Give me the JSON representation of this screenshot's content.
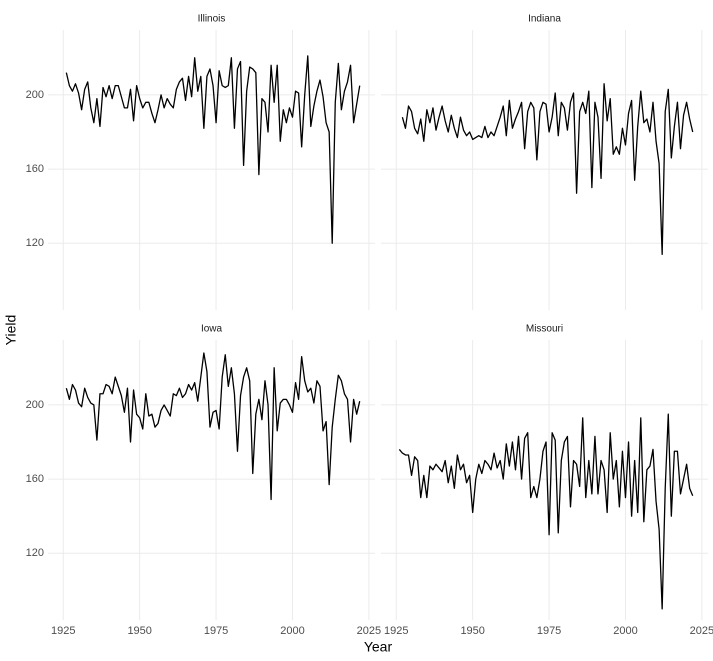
{
  "chart_data": {
    "type": "line",
    "x_label": "Year",
    "y_label": "Yield",
    "xlim": [
      1920,
      2027
    ],
    "xticks": [
      1925,
      1950,
      1975,
      2000,
      2025
    ],
    "ylim": [
      84,
      235
    ],
    "yticks": [
      120,
      160,
      200
    ],
    "grid": true,
    "x": [
      1926,
      1927,
      1928,
      1929,
      1930,
      1931,
      1932,
      1933,
      1934,
      1935,
      1936,
      1937,
      1938,
      1939,
      1940,
      1941,
      1942,
      1943,
      1944,
      1945,
      1946,
      1947,
      1948,
      1949,
      1950,
      1951,
      1952,
      1953,
      1954,
      1955,
      1956,
      1957,
      1958,
      1959,
      1960,
      1961,
      1962,
      1963,
      1964,
      1965,
      1966,
      1967,
      1968,
      1969,
      1970,
      1971,
      1972,
      1973,
      1974,
      1975,
      1976,
      1977,
      1978,
      1979,
      1980,
      1981,
      1982,
      1983,
      1984,
      1985,
      1986,
      1987,
      1988,
      1989,
      1990,
      1991,
      1992,
      1993,
      1994,
      1995,
      1996,
      1997,
      1998,
      1999,
      2000,
      2001,
      2002,
      2003,
      2004,
      2005,
      2006,
      2007,
      2008,
      2009,
      2010,
      2011,
      2012,
      2013,
      2014,
      2015,
      2016,
      2017,
      2018,
      2019,
      2020,
      2021,
      2022
    ],
    "series": [
      {
        "name": "Illinois",
        "color": "#000000",
        "values": [
          212,
          205,
          202,
          206,
          201,
          192,
          203,
          207,
          193,
          185,
          198,
          183,
          204,
          199,
          205,
          198,
          205,
          205,
          199,
          193,
          193,
          203,
          186,
          205,
          198,
          193,
          196,
          196,
          190,
          185,
          192,
          200,
          193,
          198,
          195,
          193,
          203,
          207,
          209,
          197,
          210,
          199,
          220,
          202,
          210,
          182,
          210,
          214,
          205,
          185,
          213,
          205,
          204,
          205,
          220,
          182,
          214,
          218,
          162,
          202,
          215,
          214,
          212,
          157,
          198,
          196,
          180,
          216,
          196,
          216,
          175,
          192,
          185,
          193,
          188,
          202,
          201,
          172,
          200,
          221,
          183,
          194,
          202,
          208,
          199,
          185,
          180,
          120,
          196,
          217,
          192,
          202,
          207,
          216,
          185,
          195,
          205
        ]
      },
      {
        "name": "Indiana",
        "color": "#000000",
        "values": [
          null,
          188,
          182,
          194,
          191,
          182,
          179,
          187,
          175,
          192,
          185,
          193,
          181,
          188,
          194,
          186,
          180,
          189,
          182,
          177,
          188,
          181,
          178,
          180,
          176,
          177,
          178,
          177,
          183,
          177,
          180,
          178,
          183,
          188,
          194,
          178,
          197,
          182,
          187,
          191,
          196,
          171,
          191,
          196,
          193,
          165,
          191,
          196,
          195,
          180,
          188,
          201,
          178,
          196,
          193,
          181,
          196,
          201,
          147,
          191,
          196,
          190,
          202,
          150,
          196,
          188,
          155,
          206,
          186,
          198,
          168,
          172,
          168,
          182,
          173,
          190,
          197,
          154,
          183,
          202,
          185,
          187,
          180,
          196,
          175,
          163,
          114,
          191,
          203,
          166,
          183,
          196,
          171,
          189,
          196,
          187,
          180
        ]
      },
      {
        "name": "Iowa",
        "color": "#000000",
        "values": [
          209,
          203,
          211,
          208,
          201,
          199,
          209,
          204,
          201,
          200,
          181,
          206,
          206,
          211,
          210,
          206,
          215,
          210,
          205,
          196,
          209,
          180,
          208,
          195,
          193,
          187,
          206,
          194,
          195,
          188,
          190,
          197,
          200,
          197,
          194,
          206,
          205,
          209,
          204,
          206,
          211,
          208,
          212,
          202,
          215,
          228,
          218,
          188,
          196,
          197,
          187,
          215,
          227,
          210,
          220,
          206,
          175,
          205,
          215,
          220,
          213,
          163,
          195,
          203,
          192,
          213,
          200,
          149,
          220,
          186,
          201,
          203,
          203,
          200,
          196,
          212,
          203,
          226,
          213,
          207,
          209,
          201,
          213,
          210,
          186,
          191,
          157,
          188,
          203,
          216,
          213,
          206,
          203,
          180,
          203,
          195,
          202
        ]
      },
      {
        "name": "Missouri",
        "color": "#000000",
        "values": [
          176,
          174,
          173,
          173,
          162,
          172,
          170,
          150,
          162,
          150,
          167,
          165,
          168,
          166,
          164,
          170,
          158,
          167,
          155,
          173,
          165,
          168,
          158,
          162,
          142,
          160,
          168,
          163,
          170,
          168,
          165,
          174,
          166,
          170,
          160,
          179,
          167,
          180,
          165,
          183,
          160,
          182,
          185,
          150,
          156,
          150,
          160,
          175,
          180,
          130,
          185,
          181,
          131,
          170,
          180,
          183,
          145,
          170,
          168,
          156,
          193,
          150,
          170,
          152,
          183,
          152,
          170,
          165,
          142,
          185,
          160,
          170,
          145,
          175,
          150,
          180,
          140,
          170,
          142,
          193,
          137,
          165,
          167,
          176,
          148,
          133,
          90,
          155,
          195,
          140,
          175,
          175,
          152,
          160,
          168,
          155,
          151
        ]
      }
    ]
  }
}
